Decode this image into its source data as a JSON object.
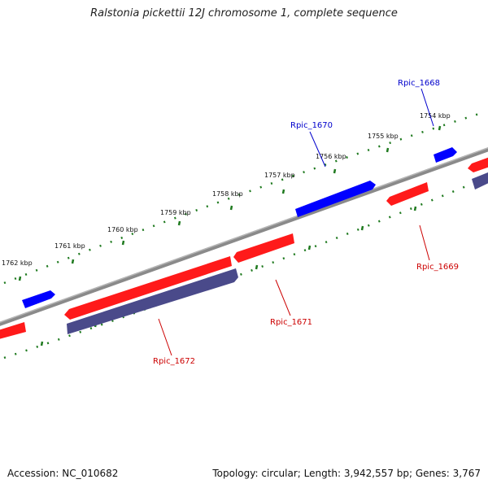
{
  "title": "Ralstonia pickettii 12J chromosome 1, complete sequence",
  "footer": {
    "accession": "Accession: NC_010682",
    "summary": "Topology: circular; Length: 3,942,557 bp; Genes: 3,767"
  },
  "colors": {
    "backbone": "#808080",
    "gene_forward_red": "#ff1a1a",
    "gene_blue": "#0000ff",
    "gene_reverse_purple": "#4a4a8a",
    "scale_dots": "#1f7a1f",
    "label_red": "#cc0000",
    "label_blue": "#0000cc"
  },
  "scale_labels": [
    "1762 kbp",
    "1761 kbp",
    "1760 kbp",
    "1759 kbp",
    "1758 kbp",
    "1757 kbp",
    "1756 kbp",
    "1755 kbp",
    "1754 kbp"
  ],
  "gene_labels": [
    "Rpic_1668",
    "Rpic_1670",
    "Rpic_1669",
    "Rpic_1671",
    "Rpic_1672"
  ]
}
